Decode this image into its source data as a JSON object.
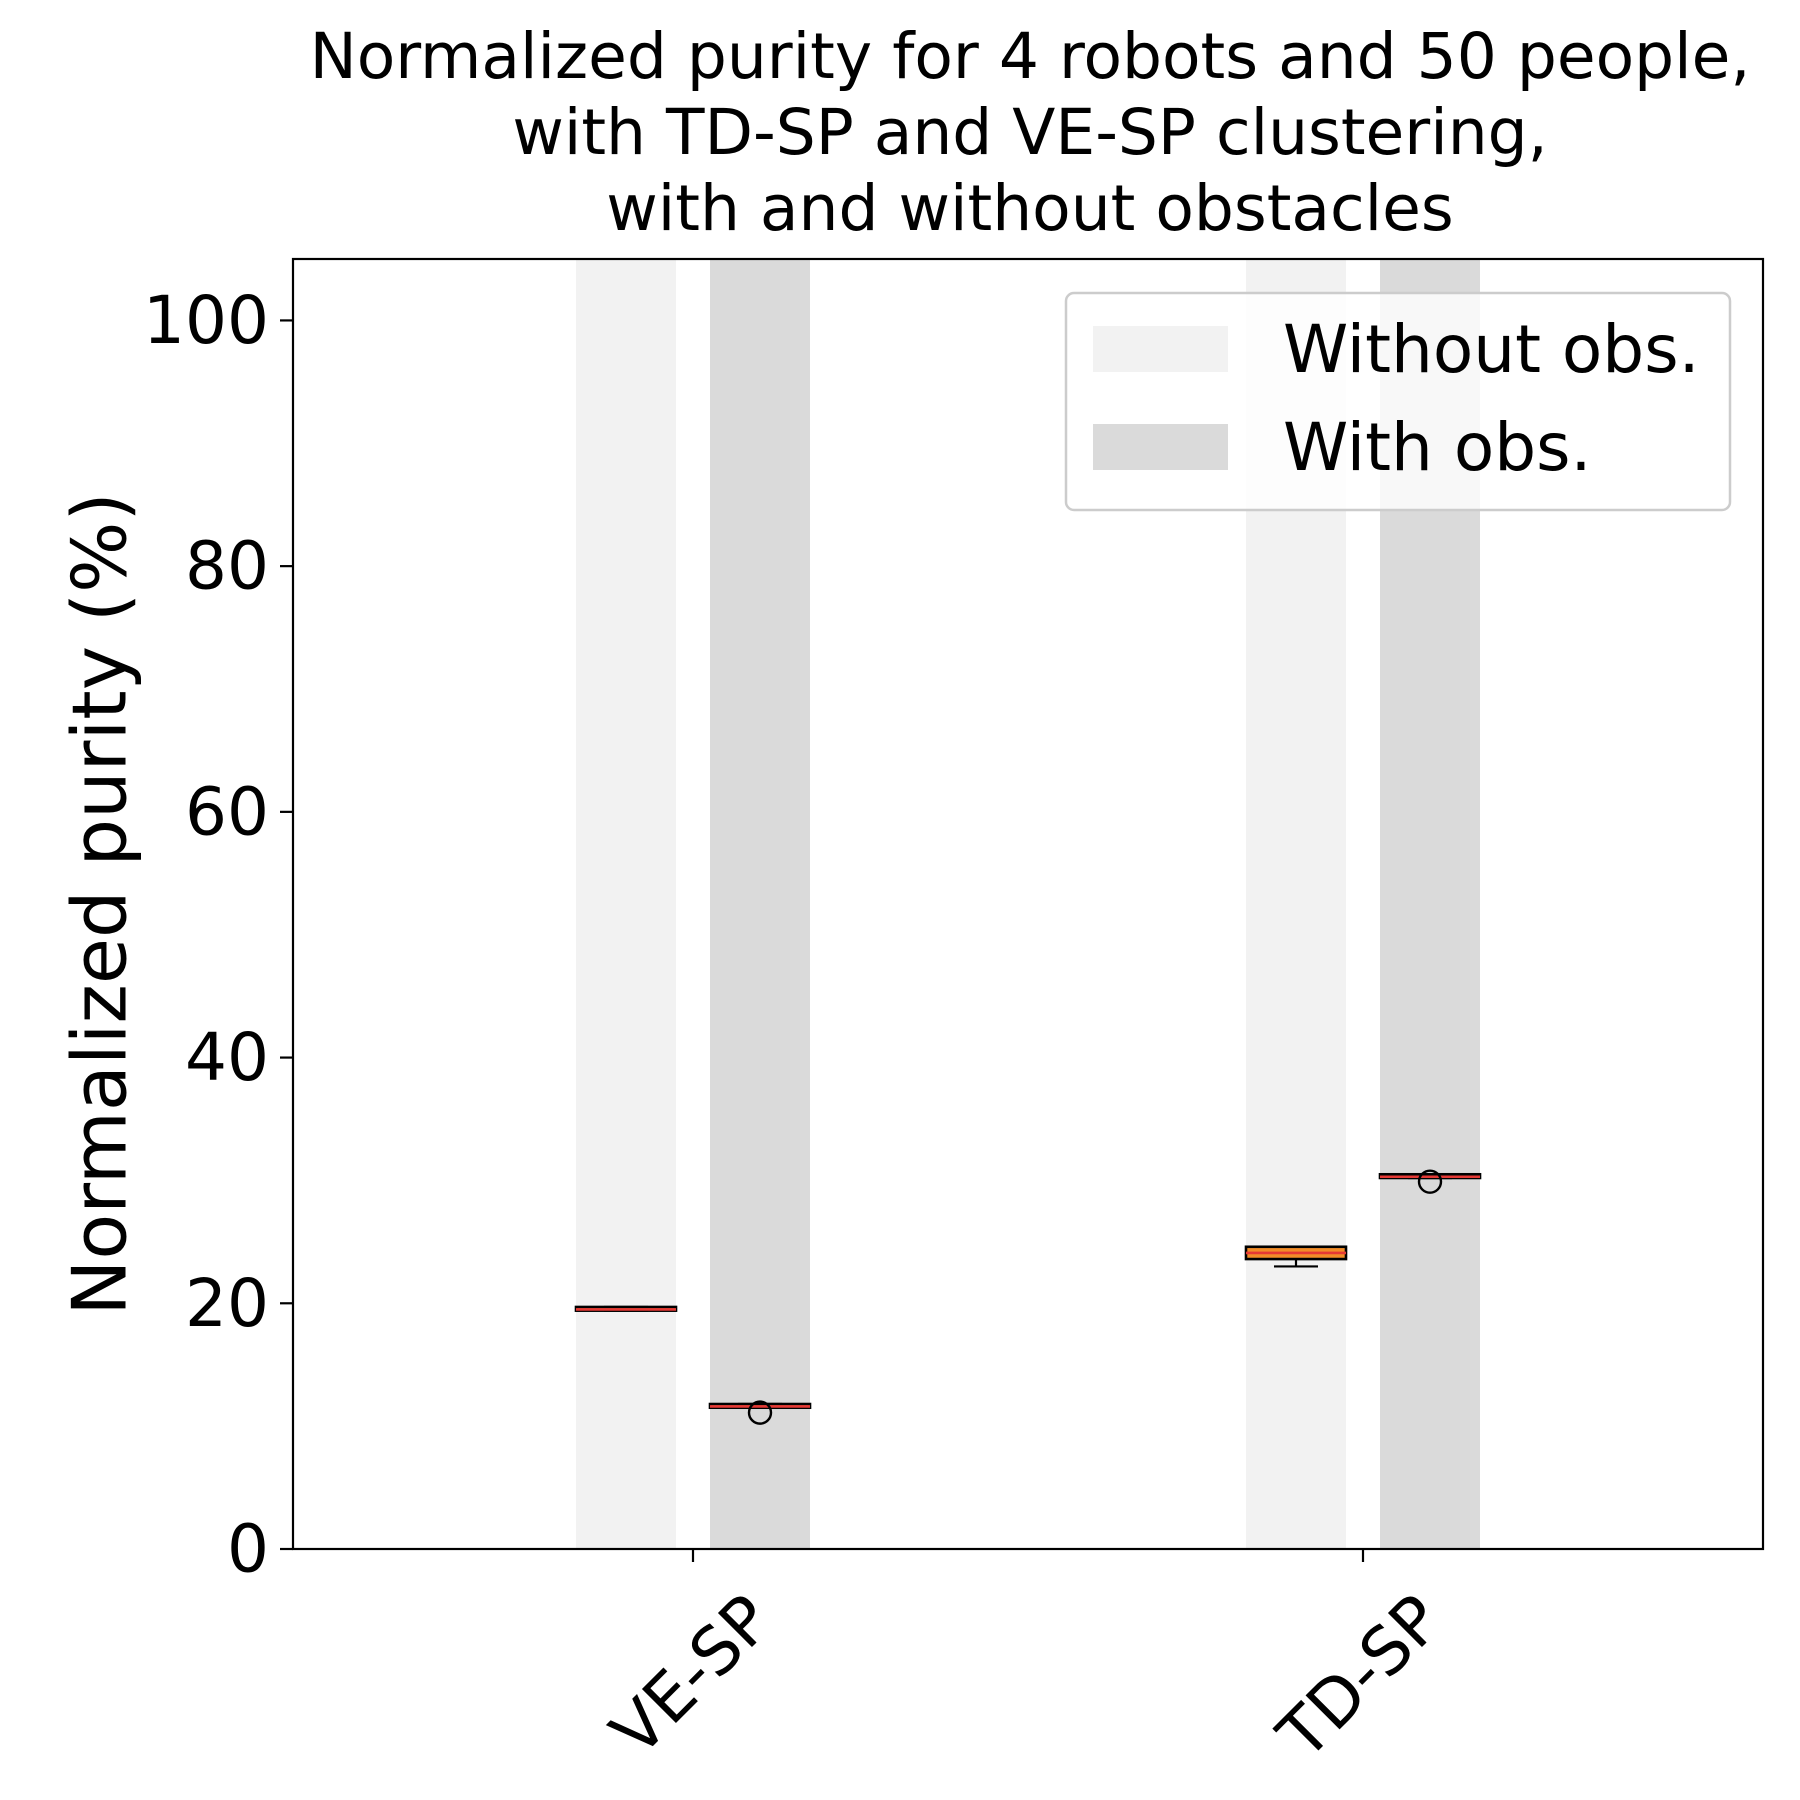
{
  "chart_data": {
    "type": "box",
    "title": [
      "Normalized purity for 4 robots and 50 people,",
      "with TD-SP and VE-SP clustering,",
      "with and without obstacles"
    ],
    "xlabel": "",
    "ylabel": "Normalized purity (%)",
    "ylim": [
      0,
      105
    ],
    "yticks": [
      0,
      20,
      40,
      60,
      80,
      100
    ],
    "categories": [
      "VE-SP",
      "TD-SP"
    ],
    "legend": {
      "position": "upper-right",
      "entries": [
        {
          "label": "Without obs.",
          "color": "#f2f2f2"
        },
        {
          "label": "With obs.",
          "color": "#dadada"
        }
      ]
    },
    "colors": {
      "box_fill": "#f28c28",
      "median": "#e53935",
      "edge": "#000000"
    },
    "series": [
      {
        "name": "Without obs.",
        "boxes": [
          {
            "category": "VE-SP",
            "whislo": 19.4,
            "q1": 19.4,
            "med": 19.5,
            "q3": 19.7,
            "whishi": 19.7,
            "fliers": []
          },
          {
            "category": "TD-SP",
            "whislo": 23.0,
            "q1": 23.6,
            "med": 24.1,
            "q3": 24.6,
            "whishi": 24.6,
            "fliers": []
          }
        ]
      },
      {
        "name": "With obs.",
        "boxes": [
          {
            "category": "VE-SP",
            "whislo": 11.5,
            "q1": 11.5,
            "med": 11.6,
            "q3": 11.8,
            "whishi": 11.8,
            "fliers": [
              11.1
            ]
          },
          {
            "category": "TD-SP",
            "whislo": 30.2,
            "q1": 30.2,
            "med": 30.3,
            "q3": 30.5,
            "whishi": 30.5,
            "fliers": [
              29.9
            ]
          }
        ]
      }
    ]
  }
}
